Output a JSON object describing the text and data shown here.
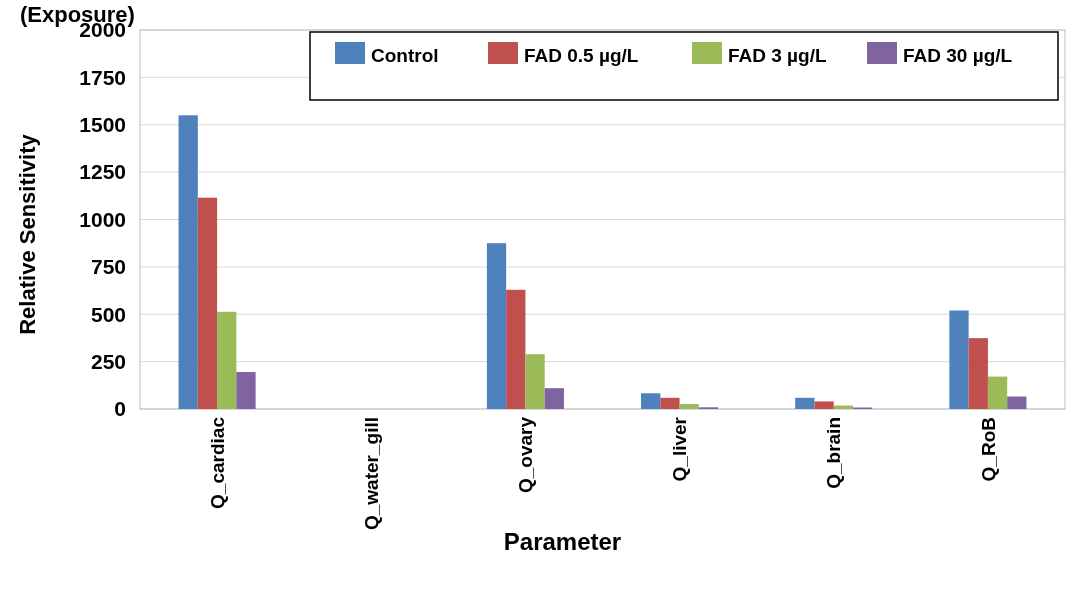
{
  "chart_data": {
    "type": "bar",
    "title": "(Exposure)",
    "xlabel": "Parameter",
    "ylabel": "Relative Sensitivity",
    "categories": [
      "Q_cardiac",
      "Q_water_gill",
      "Q_ovary",
      "Q_liver",
      "Q_brain",
      "Q_RoB"
    ],
    "series": [
      {
        "name": "Control",
        "color": "#4f81bd",
        "values": [
          1550,
          null,
          875,
          83,
          59,
          520
        ]
      },
      {
        "name": "FAD 0.5 µg/L",
        "color": "#c0504d",
        "values": [
          1115,
          null,
          629,
          59,
          40,
          374
        ]
      },
      {
        "name": "FAD 3 µg/L",
        "color": "#9bbb59",
        "values": [
          513,
          null,
          289,
          26,
          18,
          171
        ]
      },
      {
        "name": "FAD 30 µg/L",
        "color": "#8064a2",
        "values": [
          195,
          null,
          110,
          9,
          8,
          66
        ]
      }
    ],
    "ylim": [
      0,
      2000
    ],
    "yticks": [
      0,
      250,
      500,
      750,
      1000,
      1250,
      1500,
      1750,
      2000
    ],
    "grid": "y",
    "legend": "top right"
  }
}
